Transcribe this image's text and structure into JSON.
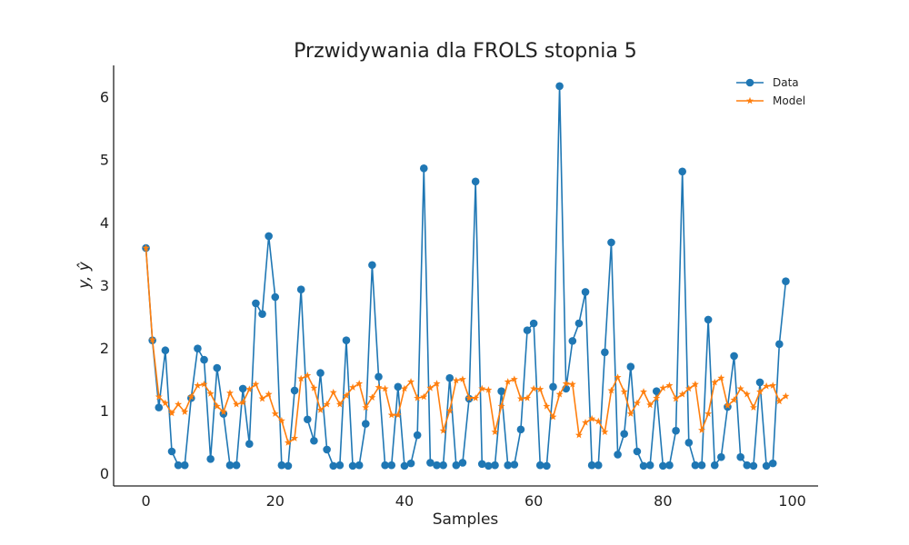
{
  "chart_data": {
    "type": "line",
    "title": "Przwidywania dla FROLS stopnia 5",
    "xlabel": "Samples",
    "ylabel": "y, ŷ",
    "xlim": [
      -5,
      104
    ],
    "ylim": [
      -0.2,
      6.5
    ],
    "xticks": [
      0,
      20,
      40,
      60,
      80,
      100
    ],
    "yticks": [
      0,
      1,
      2,
      3,
      4,
      5,
      6
    ],
    "grid": false,
    "legend_position": "top-right",
    "series": [
      {
        "name": "Data",
        "color": "#1f77b4",
        "marker": "circle",
        "values": [
          3.59,
          2.12,
          1.05,
          1.96,
          0.35,
          0.13,
          0.13,
          1.2,
          1.99,
          1.81,
          0.23,
          1.68,
          0.95,
          0.13,
          0.13,
          1.35,
          0.47,
          2.71,
          2.54,
          3.78,
          2.81,
          0.13,
          0.12,
          1.32,
          2.93,
          0.86,
          0.52,
          1.6,
          0.38,
          0.12,
          0.13,
          2.12,
          0.12,
          0.13,
          0.79,
          3.32,
          1.54,
          0.13,
          0.13,
          1.38,
          0.12,
          0.16,
          0.61,
          4.86,
          0.17,
          0.13,
          0.13,
          1.52,
          0.13,
          0.17,
          1.19,
          4.65,
          0.15,
          0.12,
          0.13,
          1.31,
          0.13,
          0.14,
          0.7,
          2.28,
          2.39,
          0.13,
          0.12,
          1.38,
          6.17,
          1.35,
          2.11,
          2.39,
          2.89,
          0.13,
          0.13,
          1.93,
          3.68,
          0.3,
          0.63,
          1.7,
          0.35,
          0.12,
          0.13,
          1.31,
          0.12,
          0.13,
          0.68,
          4.81,
          0.49,
          0.13,
          0.13,
          2.45,
          0.13,
          0.26,
          1.06,
          1.87,
          0.26,
          0.13,
          0.12,
          1.45,
          0.12,
          0.16,
          2.06,
          3.06
        ]
      },
      {
        "name": "Model",
        "color": "#ff7f0e",
        "marker": "star",
        "values": [
          3.59,
          2.13,
          1.22,
          1.12,
          0.96,
          1.1,
          0.98,
          1.22,
          1.4,
          1.42,
          1.27,
          1.07,
          0.98,
          1.28,
          1.1,
          1.13,
          1.34,
          1.42,
          1.19,
          1.26,
          0.95,
          0.84,
          0.49,
          0.56,
          1.51,
          1.56,
          1.36,
          1.01,
          1.1,
          1.29,
          1.1,
          1.24,
          1.37,
          1.43,
          1.05,
          1.21,
          1.37,
          1.35,
          0.93,
          0.93,
          1.35,
          1.46,
          1.2,
          1.22,
          1.36,
          1.43,
          0.68,
          1.0,
          1.48,
          1.5,
          1.2,
          1.2,
          1.35,
          1.33,
          0.66,
          1.07,
          1.46,
          1.5,
          1.19,
          1.2,
          1.35,
          1.34,
          1.07,
          0.9,
          1.26,
          1.43,
          1.42,
          0.61,
          0.81,
          0.87,
          0.83,
          0.66,
          1.32,
          1.53,
          1.3,
          0.95,
          1.12,
          1.3,
          1.09,
          1.2,
          1.36,
          1.4,
          1.19,
          1.26,
          1.35,
          1.42,
          0.69,
          0.95,
          1.45,
          1.52,
          1.08,
          1.17,
          1.35,
          1.26,
          1.05,
          1.3,
          1.39,
          1.4,
          1.15,
          1.23
        ]
      }
    ]
  }
}
